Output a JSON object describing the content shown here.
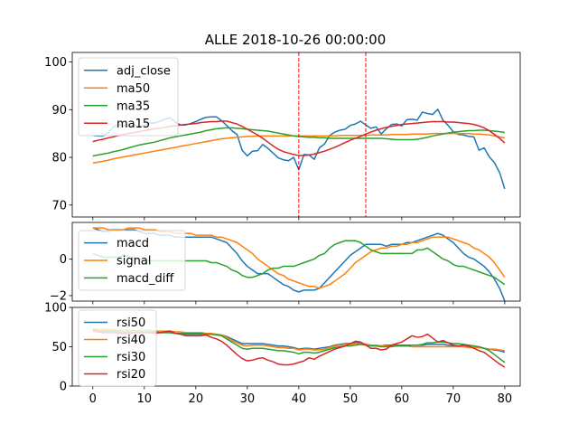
{
  "title": "ALLE 2018-10-26 00:00:00",
  "colors": {
    "blue": "#1f77b4",
    "orange": "#ff7f0e",
    "green": "#2ca02c",
    "red": "#d62728",
    "vline": "#ff0000"
  },
  "chart_data": [
    {
      "type": "line",
      "panel": "price",
      "xlim": [
        -4,
        83
      ],
      "ylim": [
        67.5,
        102
      ],
      "yticks": [
        70,
        80,
        90,
        100
      ],
      "xticks": [
        0,
        10,
        20,
        30,
        40,
        50,
        60,
        70,
        80
      ],
      "legend_position": "top-left",
      "vlines": [
        40,
        53
      ],
      "series": [
        {
          "name": "adj_close",
          "color": "#1f77b4",
          "values": [
            84.6,
            84.5,
            84.5,
            85.2,
            86.4,
            86.9,
            86.6,
            86.6,
            86.8,
            86.4,
            86.8,
            87.2,
            87.2,
            87.6,
            88.0,
            88.3,
            87.4,
            86.8,
            86.8,
            87.1,
            87.5,
            88.0,
            88.4,
            88.5,
            88.5,
            87.7,
            86.7,
            85.6,
            84.8,
            81.5,
            80.3,
            81.3,
            81.4,
            82.7,
            81.9,
            80.9,
            79.9,
            79.5,
            79.3,
            80.0,
            77.4,
            80.6,
            80.5,
            79.6,
            82.0,
            82.8,
            84.6,
            85.3,
            85.7,
            85.9,
            86.7,
            87.0,
            87.6,
            86.8,
            86.1,
            86.4,
            84.9,
            86.0,
            86.9,
            87.0,
            86.6,
            87.9,
            88.0,
            87.8,
            89.5,
            89.2,
            89.0,
            90.1,
            87.8,
            86.7,
            85.4,
            84.8,
            84.7,
            84.4,
            84.3,
            81.5,
            82.0,
            80.1,
            78.9,
            76.8,
            73.4
          ]
        },
        {
          "name": "ma50",
          "color": "#ff7f0e",
          "values": [
            78.8,
            79.0,
            79.2,
            79.4,
            79.7,
            79.9,
            80.1,
            80.3,
            80.5,
            80.7,
            80.9,
            81.1,
            81.3,
            81.5,
            81.7,
            81.9,
            82.1,
            82.3,
            82.5,
            82.7,
            82.9,
            83.1,
            83.3,
            83.5,
            83.7,
            83.9,
            84.0,
            84.1,
            84.2,
            84.3,
            84.4,
            84.4,
            84.5,
            84.5,
            84.5,
            84.5,
            84.5,
            84.5,
            84.5,
            84.5,
            84.5,
            84.5,
            84.5,
            84.5,
            84.5,
            84.5,
            84.5,
            84.5,
            84.6,
            84.6,
            84.6,
            84.6,
            84.6,
            84.6,
            84.7,
            84.7,
            84.7,
            84.7,
            84.8,
            84.8,
            84.8,
            84.8,
            84.9,
            84.9,
            84.9,
            84.9,
            85.0,
            85.0,
            85.0,
            85.0,
            85.0,
            85.0,
            85.0,
            85.0,
            84.9,
            84.9,
            84.8,
            84.7,
            84.5,
            84.3,
            84.1
          ]
        },
        {
          "name": "ma35",
          "color": "#2ca02c",
          "values": [
            80.3,
            80.5,
            80.7,
            80.9,
            81.2,
            81.4,
            81.7,
            82.0,
            82.3,
            82.6,
            82.8,
            83.0,
            83.2,
            83.5,
            83.8,
            84.1,
            84.3,
            84.5,
            84.7,
            84.9,
            85.1,
            85.3,
            85.6,
            85.8,
            86.0,
            86.1,
            86.2,
            86.2,
            86.1,
            86.0,
            85.9,
            85.8,
            85.7,
            85.6,
            85.5,
            85.3,
            85.1,
            84.9,
            84.7,
            84.5,
            84.4,
            84.3,
            84.2,
            84.2,
            84.1,
            84.1,
            84.0,
            84.0,
            84.0,
            84.0,
            84.0,
            84.0,
            84.0,
            84.0,
            84.0,
            84.0,
            84.0,
            83.9,
            83.8,
            83.7,
            83.7,
            83.7,
            83.7,
            83.8,
            84.0,
            84.2,
            84.5,
            84.7,
            84.9,
            85.1,
            85.3,
            85.4,
            85.5,
            85.6,
            85.6,
            85.7,
            85.7,
            85.6,
            85.5,
            85.4,
            85.2
          ]
        },
        {
          "name": "ma15",
          "color": "#d62728",
          "values": [
            83.3,
            83.6,
            83.8,
            84.1,
            84.3,
            84.6,
            84.8,
            85.0,
            85.2,
            85.4,
            85.6,
            85.8,
            86.0,
            86.1,
            86.3,
            86.5,
            86.6,
            86.8,
            86.9,
            87.0,
            87.1,
            87.3,
            87.4,
            87.5,
            87.5,
            87.6,
            87.6,
            87.3,
            87.0,
            86.5,
            85.9,
            85.3,
            84.7,
            84.0,
            83.2,
            82.4,
            81.7,
            81.2,
            80.9,
            80.6,
            80.4,
            80.4,
            80.5,
            80.7,
            81.0,
            81.3,
            81.7,
            82.1,
            82.6,
            83.1,
            83.6,
            84.0,
            84.4,
            84.9,
            85.3,
            85.7,
            86.0,
            86.3,
            86.5,
            86.7,
            86.9,
            87.0,
            87.1,
            87.2,
            87.3,
            87.4,
            87.5,
            87.5,
            87.5,
            87.4,
            87.4,
            87.3,
            87.2,
            87.1,
            86.9,
            86.6,
            86.2,
            85.6,
            84.8,
            84.0,
            83.0
          ]
        }
      ]
    },
    {
      "type": "line",
      "panel": "macd",
      "xlim": [
        -4,
        83
      ],
      "ylim": [
        -2.3,
        2.0
      ],
      "yticks": [
        -2,
        0
      ],
      "legend_position": "left",
      "series": [
        {
          "name": "macd",
          "color": "#1f77b4",
          "values": [
            1.7,
            1.6,
            1.5,
            1.5,
            1.6,
            1.6,
            1.6,
            1.6,
            1.6,
            1.5,
            1.4,
            1.4,
            1.4,
            1.3,
            1.3,
            1.3,
            1.2,
            1.2,
            1.2,
            1.2,
            1.2,
            1.2,
            1.2,
            1.2,
            1.1,
            1.0,
            0.9,
            0.6,
            0.3,
            -0.1,
            -0.4,
            -0.6,
            -0.8,
            -0.8,
            -0.8,
            -1.0,
            -1.2,
            -1.4,
            -1.5,
            -1.7,
            -1.8,
            -1.7,
            -1.7,
            -1.7,
            -1.6,
            -1.3,
            -1.0,
            -0.7,
            -0.4,
            -0.1,
            0.2,
            0.4,
            0.6,
            0.8,
            0.8,
            0.8,
            0.8,
            0.7,
            0.8,
            0.8,
            0.8,
            0.9,
            0.9,
            1.0,
            1.1,
            1.2,
            1.3,
            1.4,
            1.3,
            1.1,
            0.9,
            0.6,
            0.3,
            0.1,
            0.0,
            -0.2,
            -0.4,
            -0.7,
            -1.1,
            -1.6,
            -2.3
          ]
        },
        {
          "name": "signal",
          "color": "#ff7f0e",
          "values": [
            1.7,
            1.7,
            1.7,
            1.6,
            1.6,
            1.6,
            1.6,
            1.7,
            1.7,
            1.7,
            1.6,
            1.6,
            1.6,
            1.5,
            1.5,
            1.5,
            1.4,
            1.4,
            1.4,
            1.4,
            1.3,
            1.3,
            1.3,
            1.3,
            1.2,
            1.2,
            1.1,
            1.0,
            0.9,
            0.7,
            0.5,
            0.3,
            0.0,
            -0.2,
            -0.4,
            -0.6,
            -0.8,
            -0.9,
            -1.1,
            -1.2,
            -1.3,
            -1.4,
            -1.5,
            -1.5,
            -1.6,
            -1.5,
            -1.4,
            -1.2,
            -1.0,
            -0.8,
            -0.5,
            -0.2,
            0.0,
            0.2,
            0.4,
            0.5,
            0.6,
            0.6,
            0.7,
            0.7,
            0.8,
            0.8,
            0.9,
            0.9,
            1.0,
            1.1,
            1.2,
            1.2,
            1.2,
            1.2,
            1.1,
            1.0,
            0.9,
            0.8,
            0.6,
            0.5,
            0.3,
            0.1,
            -0.2,
            -0.6,
            -1.0
          ]
        },
        {
          "name": "macd_diff",
          "color": "#2ca02c",
          "values": [
            0.3,
            0.2,
            0.1,
            0.1,
            0.1,
            0.1,
            0.2,
            0.1,
            0.1,
            0.0,
            -0.1,
            -0.1,
            -0.1,
            -0.1,
            -0.1,
            -0.1,
            -0.1,
            -0.1,
            -0.1,
            -0.1,
            -0.1,
            -0.1,
            -0.1,
            -0.2,
            -0.2,
            -0.3,
            -0.4,
            -0.6,
            -0.7,
            -0.9,
            -1.0,
            -1.0,
            -0.9,
            -0.8,
            -0.6,
            -0.5,
            -0.5,
            -0.4,
            -0.4,
            -0.4,
            -0.3,
            -0.2,
            -0.1,
            0.0,
            0.2,
            0.3,
            0.6,
            0.8,
            0.9,
            1.0,
            1.0,
            1.0,
            0.9,
            0.7,
            0.5,
            0.4,
            0.3,
            0.3,
            0.3,
            0.3,
            0.3,
            0.3,
            0.3,
            0.5,
            0.5,
            0.6,
            0.4,
            0.2,
            0.0,
            -0.1,
            -0.3,
            -0.4,
            -0.4,
            -0.5,
            -0.6,
            -0.7,
            -0.8,
            -0.9,
            -1.0,
            -1.2,
            -1.4
          ]
        }
      ]
    },
    {
      "type": "line",
      "panel": "rsi",
      "xlim": [
        -4,
        83
      ],
      "ylim": [
        0,
        100
      ],
      "yticks": [
        0,
        50,
        100
      ],
      "xticks": [
        0,
        10,
        20,
        30,
        40,
        50,
        60,
        70,
        80
      ],
      "legend_position": "top-left",
      "series": [
        {
          "name": "rsi50",
          "color": "#1f77b4",
          "values": [
            70,
            70,
            70,
            70,
            70,
            69,
            69,
            68,
            68,
            68,
            68,
            68,
            68,
            68,
            68,
            68,
            67,
            67,
            66,
            66,
            66,
            66,
            66,
            66,
            66,
            65,
            63,
            60,
            57,
            54,
            54,
            54,
            54,
            54,
            53,
            52,
            51,
            51,
            50,
            49,
            47,
            48,
            48,
            47,
            48,
            49,
            50,
            52,
            53,
            54,
            54,
            55,
            55,
            53,
            52,
            52,
            51,
            52,
            52,
            52,
            52,
            52,
            52,
            52,
            52,
            53,
            53,
            53,
            53,
            52,
            51,
            51,
            50,
            50,
            49,
            49,
            48,
            47,
            46,
            45,
            43
          ]
        },
        {
          "name": "rsi40",
          "color": "#ff7f0e",
          "values": [
            73,
            72,
            72,
            72,
            72,
            71,
            71,
            71,
            71,
            71,
            71,
            71,
            70,
            70,
            70,
            70,
            69,
            69,
            68,
            68,
            68,
            68,
            67,
            67,
            66,
            65,
            62,
            58,
            55,
            52,
            51,
            52,
            52,
            52,
            51,
            50,
            49,
            49,
            48,
            48,
            46,
            47,
            47,
            46,
            46,
            47,
            49,
            51,
            52,
            53,
            53,
            54,
            54,
            53,
            52,
            52,
            51,
            51,
            51,
            51,
            51,
            51,
            50,
            50,
            50,
            50,
            50,
            50,
            50,
            50,
            50,
            50,
            50,
            49,
            49,
            49,
            48,
            47,
            47,
            46,
            45
          ]
        },
        {
          "name": "rsi30",
          "color": "#2ca02c",
          "values": [
            72,
            70,
            70,
            70,
            70,
            69,
            69,
            69,
            69,
            69,
            69,
            69,
            69,
            68,
            68,
            68,
            67,
            67,
            67,
            67,
            67,
            67,
            66,
            66,
            65,
            64,
            60,
            56,
            52,
            48,
            47,
            48,
            48,
            48,
            47,
            46,
            45,
            45,
            44,
            43,
            41,
            43,
            43,
            42,
            43,
            45,
            47,
            49,
            50,
            51,
            51,
            52,
            53,
            52,
            51,
            51,
            50,
            50,
            50,
            51,
            51,
            51,
            52,
            52,
            53,
            55,
            55,
            56,
            56,
            55,
            54,
            54,
            53,
            52,
            51,
            50,
            48,
            45,
            40,
            35,
            30
          ]
        },
        {
          "name": "rsi20",
          "color": "#d62728",
          "values": [
            70,
            69,
            68,
            68,
            68,
            67,
            67,
            67,
            68,
            68,
            68,
            68,
            67,
            68,
            69,
            70,
            67,
            66,
            64,
            64,
            64,
            64,
            65,
            62,
            60,
            57,
            52,
            46,
            40,
            35,
            32,
            33,
            35,
            36,
            33,
            31,
            28,
            27,
            27,
            28,
            30,
            32,
            36,
            34,
            38,
            41,
            44,
            47,
            49,
            51,
            54,
            57,
            56,
            52,
            48,
            48,
            46,
            47,
            52,
            54,
            56,
            60,
            64,
            62,
            63,
            66,
            61,
            56,
            58,
            55,
            52,
            51,
            52,
            51,
            48,
            45,
            43,
            38,
            33,
            28,
            24
          ]
        }
      ]
    }
  ]
}
